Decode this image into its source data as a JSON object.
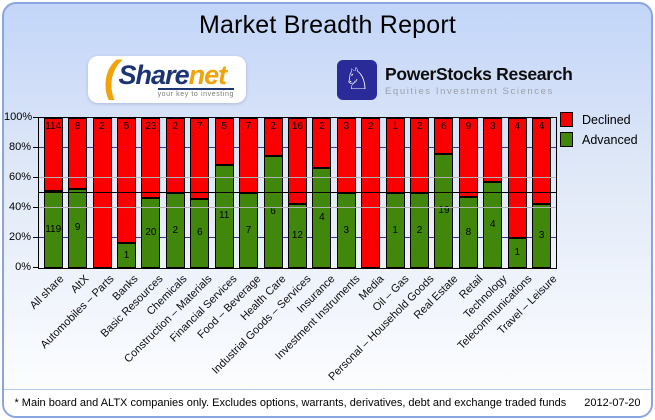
{
  "header": {
    "title": "Market Breadth Report"
  },
  "logos": {
    "sharenet": {
      "part1": "Share",
      "part2": "net",
      "tagline": "your key to investing"
    },
    "powerstocks": {
      "line1": "PowerStocks  Research",
      "line2": "Equities Investment Sciences",
      "knight_icon": "chess-knight"
    }
  },
  "chart_data": {
    "type": "bar",
    "stacked": true,
    "percent_stacked": true,
    "categories": [
      "All share",
      "AltX",
      "Automobiles – Parts",
      "Banks",
      "Basic Resources",
      "Chemicals",
      "Construction – Materials",
      "Financial Services",
      "Food – Beverage",
      "Health Care",
      "Industrial Goods – Services",
      "Insurance",
      "Investment Instruments",
      "Media",
      "Oil – Gas",
      "Personal – Household Goods",
      "Real Estate",
      "Retail",
      "Technology",
      "Telecommunications",
      "Travel – Leisure"
    ],
    "series": [
      {
        "name": "Declined",
        "color": "#fb0000",
        "values": [
          114,
          8,
          2,
          5,
          23,
          2,
          7,
          5,
          7,
          2,
          16,
          2,
          3,
          2,
          1,
          2,
          6,
          9,
          3,
          4,
          4
        ]
      },
      {
        "name": "Advanced",
        "color": "#41870c",
        "values": [
          119,
          9,
          0,
          1,
          20,
          2,
          6,
          11,
          7,
          6,
          12,
          4,
          3,
          0,
          1,
          2,
          19,
          8,
          4,
          1,
          3
        ]
      }
    ],
    "y_ticks": [
      "0%",
      "20%",
      "40%",
      "60%",
      "80%",
      "100%"
    ],
    "ylim": [
      0,
      100
    ],
    "reference_line_pct": 50,
    "legend_position": "top-right",
    "grid": true
  },
  "footer": {
    "note": "* Main board and ALTX companies only. Excludes options, warrants, derivatives, debt and exchange traded funds",
    "date": "2012-07-20"
  },
  "colors": {
    "declined": "#fb0000",
    "advanced": "#41870c",
    "card_border": "#8aa5e0",
    "grid_major": "#333399",
    "grid_minor": "#b3b3b3",
    "reference_line": "#000000"
  }
}
